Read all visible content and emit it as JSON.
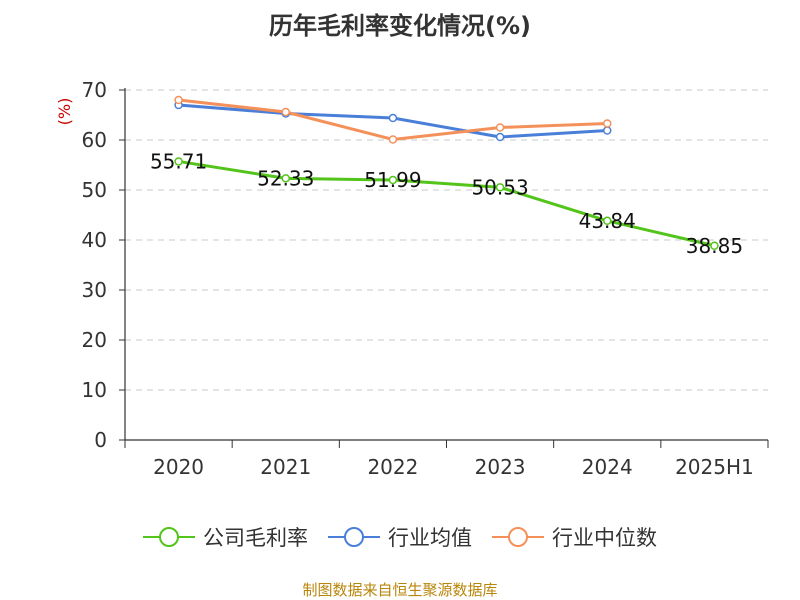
{
  "page": {
    "source_note": "制图数据来自恒生聚源数据库"
  },
  "chart_data": {
    "type": "line",
    "title": "历年毛利率变化情况(%)",
    "ylabel": "(%)",
    "ylim": [
      0,
      70
    ],
    "yticks": [
      0,
      10,
      20,
      30,
      40,
      50,
      60,
      70
    ],
    "categories": [
      "2020",
      "2021",
      "2022",
      "2023",
      "2024",
      "2025H1"
    ],
    "grid": true,
    "legend_position": "bottom",
    "series": [
      {
        "name": "公司毛利率",
        "color": "#52c41a",
        "values": [
          55.71,
          52.33,
          51.99,
          50.53,
          43.84,
          38.85
        ],
        "data_labels": [
          "55.71",
          "52.33",
          "51.99",
          "50.53",
          "43.84",
          "38.85"
        ]
      },
      {
        "name": "行业均值",
        "color": "#4a7fd9",
        "values": [
          67.0,
          65.3,
          64.4,
          60.6,
          61.9,
          null
        ]
      },
      {
        "name": "行业中位数",
        "color": "#f4905a",
        "values": [
          68.0,
          65.6,
          60.1,
          62.5,
          63.3,
          null
        ]
      }
    ]
  }
}
